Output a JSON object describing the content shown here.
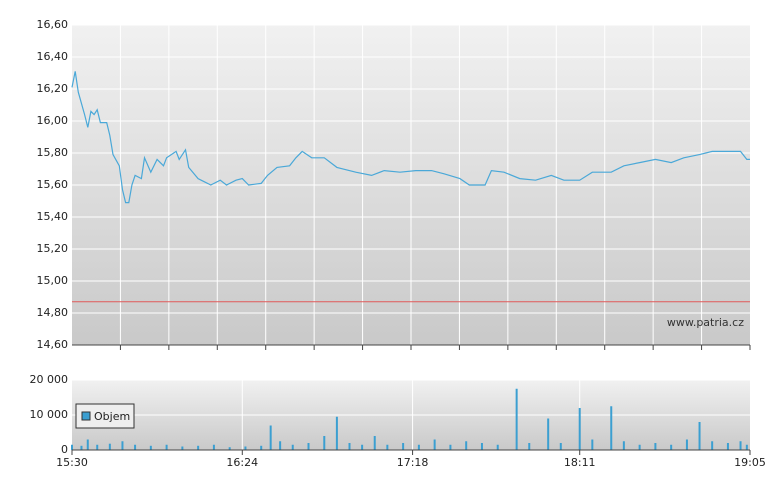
{
  "chart_data": [
    {
      "type": "line",
      "color": "#4aa8d8",
      "watermark": "www.patria.cz",
      "reference_value": 14.87,
      "reference_color": "#e05a5a",
      "xlim": [
        "15:30",
        "19:05"
      ],
      "ylim": [
        14.6,
        16.6
      ],
      "yticks": [
        {
          "value": 14.6,
          "label": "14,60"
        },
        {
          "value": 14.8,
          "label": "14,80"
        },
        {
          "value": 15.0,
          "label": "15,00"
        },
        {
          "value": 15.2,
          "label": "15,20"
        },
        {
          "value": 15.4,
          "label": "15,40"
        },
        {
          "value": 15.6,
          "label": "15,60"
        },
        {
          "value": 15.8,
          "label": "15,80"
        },
        {
          "value": 16.0,
          "label": "16,00"
        },
        {
          "value": 16.2,
          "label": "16,20"
        },
        {
          "value": 16.4,
          "label": "16,40"
        },
        {
          "value": 16.6,
          "label": "16,60"
        }
      ],
      "grid": true,
      "x": [
        "15:30",
        "15:31",
        "15:32",
        "15:34",
        "15:35",
        "15:36",
        "15:37",
        "15:38",
        "15:39",
        "15:41",
        "15:42",
        "15:43",
        "15:45",
        "15:46",
        "15:47",
        "15:48",
        "15:49",
        "15:50",
        "15:52",
        "15:53",
        "15:55",
        "15:57",
        "15:59",
        "16:00",
        "16:03",
        "16:04",
        "16:06",
        "16:07",
        "16:10",
        "16:12",
        "16:14",
        "16:17",
        "16:19",
        "16:22",
        "16:24",
        "16:26",
        "16:30",
        "16:32",
        "16:35",
        "16:39",
        "16:41",
        "16:43",
        "16:46",
        "16:50",
        "16:54",
        "17:00",
        "17:05",
        "17:09",
        "17:14",
        "17:19",
        "17:24",
        "17:28",
        "17:33",
        "17:36",
        "17:41",
        "17:43",
        "17:47",
        "17:52",
        "17:57",
        "18:02",
        "18:06",
        "18:11",
        "18:15",
        "18:21",
        "18:25",
        "18:30",
        "18:35",
        "18:40",
        "18:44",
        "18:49",
        "18:53",
        "18:58",
        "19:02",
        "19:04",
        "19:05"
      ],
      "values": [
        16.21,
        16.31,
        16.18,
        16.04,
        15.96,
        16.06,
        16.04,
        16.07,
        15.99,
        15.99,
        15.91,
        15.79,
        15.72,
        15.57,
        15.49,
        15.49,
        15.6,
        15.66,
        15.64,
        15.77,
        15.68,
        15.76,
        15.72,
        15.77,
        15.81,
        15.76,
        15.82,
        15.71,
        15.64,
        15.62,
        15.6,
        15.63,
        15.6,
        15.63,
        15.64,
        15.6,
        15.61,
        15.66,
        15.71,
        15.72,
        15.77,
        15.81,
        15.77,
        15.77,
        15.71,
        15.68,
        15.66,
        15.69,
        15.68,
        15.69,
        15.69,
        15.67,
        15.64,
        15.6,
        15.6,
        15.69,
        15.68,
        15.64,
        15.63,
        15.66,
        15.63,
        15.63,
        15.68,
        15.68,
        15.72,
        15.74,
        15.76,
        15.74,
        15.77,
        15.79,
        15.81,
        15.81,
        15.81,
        15.76,
        15.76
      ]
    },
    {
      "type": "bar",
      "series": [
        {
          "name": "Objem",
          "color": "#3b9fd1",
          "x": [
            "15:30",
            "15:33",
            "15:35",
            "15:38",
            "15:42",
            "15:46",
            "15:50",
            "15:55",
            "16:00",
            "16:05",
            "16:10",
            "16:15",
            "16:20",
            "16:25",
            "16:30",
            "16:33",
            "16:36",
            "16:40",
            "16:45",
            "16:50",
            "16:54",
            "16:58",
            "17:02",
            "17:06",
            "17:10",
            "17:15",
            "17:20",
            "17:25",
            "17:30",
            "17:35",
            "17:40",
            "17:45",
            "17:51",
            "17:55",
            "18:01",
            "18:05",
            "18:11",
            "18:15",
            "18:21",
            "18:25",
            "18:30",
            "18:35",
            "18:40",
            "18:45",
            "18:49",
            "18:53",
            "18:58",
            "19:02",
            "19:04"
          ],
          "values": [
            1500,
            1200,
            3000,
            1500,
            1800,
            2500,
            1500,
            1200,
            1500,
            1000,
            1200,
            1500,
            800,
            1000,
            1200,
            7000,
            2500,
            1500,
            2000,
            4000,
            9500,
            2000,
            1500,
            4000,
            1500,
            2000,
            1500,
            3000,
            1500,
            2500,
            2000,
            1500,
            17500,
            2000,
            9000,
            2000,
            12000,
            3000,
            12500,
            2500,
            1500,
            2000,
            1500,
            3000,
            8000,
            2500,
            2000,
            2500,
            1500
          ]
        }
      ],
      "xlim": [
        "15:30",
        "19:05"
      ],
      "xticks": [
        "15:30",
        "16:24",
        "17:18",
        "18:11",
        "19:05"
      ],
      "ylim": [
        0,
        20000
      ],
      "yticks": [
        0,
        {
          "value": 10000,
          "label": "10 000"
        },
        {
          "value": 20000,
          "label": "20 000"
        }
      ],
      "grid": true
    }
  ]
}
